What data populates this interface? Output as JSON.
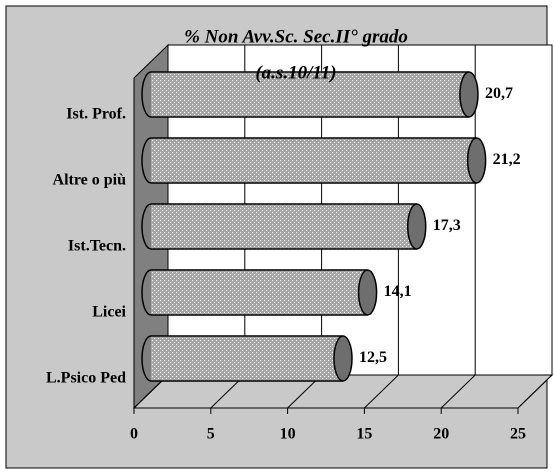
{
  "chart_data": {
    "type": "bar3d",
    "orientation": "horizontal",
    "title": "% Non Avv.Sc. Sec.II° grado",
    "subtitle": "(a.s.10/11)",
    "categories": [
      "Ist. Prof.",
      "Altre o più",
      "Ist.Tecn.",
      "Licei",
      "L.Psico Ped"
    ],
    "values": [
      20.7,
      21.2,
      17.3,
      14.1,
      12.5
    ],
    "value_labels": [
      "20,7",
      "21,2",
      "17,3",
      "14,1",
      "12,5"
    ],
    "color": "#a6a6a6",
    "xlim": [
      0,
      25
    ],
    "xticks": [
      0,
      5,
      10,
      15,
      20,
      25
    ],
    "grid": true
  }
}
